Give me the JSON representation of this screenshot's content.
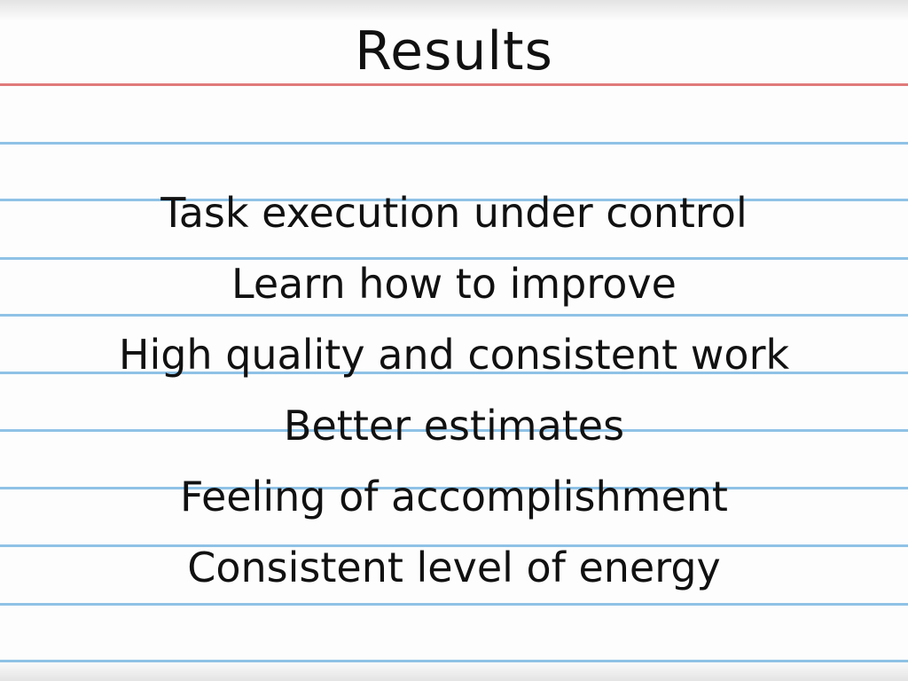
{
  "slide": {
    "title": "Results",
    "items": [
      "Task execution under control",
      "Learn how to improve",
      "High quality and consistent work",
      "Better estimates",
      "Feeling of accomplishment",
      "Consistent level of energy"
    ]
  },
  "colors": {
    "paper": "#fdfdfd",
    "rule_line": "#8fc2e6",
    "margin_line": "#e07a7a",
    "ink": "#111111"
  }
}
